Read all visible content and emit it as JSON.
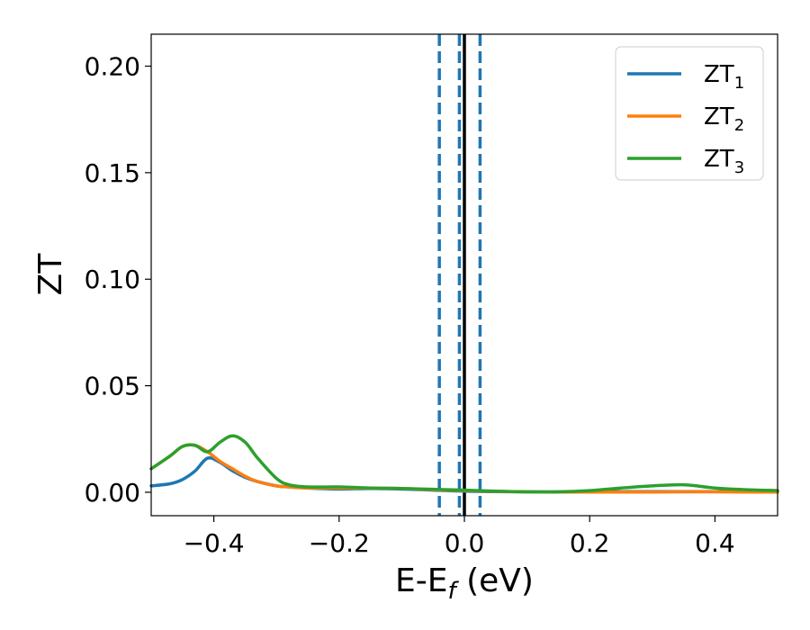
{
  "chart_data": {
    "type": "line",
    "xlabel": "E-E",
    "xlabel_sub": "f",
    "xlabel_unit": "(eV)",
    "ylabel": "ZT",
    "xlim": [
      -0.5,
      0.5
    ],
    "ylim": [
      -0.011,
      0.215
    ],
    "xticks": [
      -0.4,
      -0.2,
      0.0,
      0.2,
      0.4
    ],
    "xtick_labels": [
      "−0.4",
      "−0.2",
      "0.0",
      "0.2",
      "0.4"
    ],
    "yticks": [
      0.0,
      0.05,
      0.1,
      0.15,
      0.2
    ],
    "ytick_labels": [
      "0.00",
      "0.05",
      "0.10",
      "0.15",
      "0.20"
    ],
    "legend_position": "top-right",
    "vertical_lines": [
      {
        "x": -0.04,
        "style": "dashed",
        "color": "#1f77b4"
      },
      {
        "x": -0.008,
        "style": "dashed",
        "color": "#1f77b4"
      },
      {
        "x": 0.0,
        "style": "solid",
        "color": "#000000"
      },
      {
        "x": 0.025,
        "style": "dashed",
        "color": "#1f77b4"
      }
    ],
    "series": [
      {
        "name": "ZT",
        "subscript": "1",
        "color": "#1f77b4",
        "x": [
          -0.5,
          -0.47,
          -0.45,
          -0.43,
          -0.41,
          -0.39,
          -0.37,
          -0.35,
          -0.33,
          -0.3,
          -0.28,
          -0.25,
          -0.2,
          -0.15,
          -0.1,
          -0.05,
          0.0,
          0.05,
          0.1,
          0.15,
          0.2,
          0.25,
          0.3,
          0.35,
          0.4,
          0.45,
          0.5
        ],
        "y": [
          0.003,
          0.004,
          0.006,
          0.01,
          0.016,
          0.014,
          0.01,
          0.007,
          0.005,
          0.003,
          0.0025,
          0.002,
          0.0015,
          0.0018,
          0.0015,
          0.001,
          0.0005,
          0.0003,
          0.0002,
          0.0002,
          0.0003,
          0.0003,
          0.0003,
          0.0003,
          0.0003,
          0.0003,
          0.0003
        ]
      },
      {
        "name": "ZT",
        "subscript": "2",
        "color": "#ff7f0e",
        "x": [
          -0.5,
          -0.47,
          -0.45,
          -0.43,
          -0.41,
          -0.39,
          -0.37,
          -0.35,
          -0.33,
          -0.3,
          -0.28,
          -0.25,
          -0.2,
          -0.15,
          -0.1,
          -0.05,
          0.0,
          0.05,
          0.1,
          0.15,
          0.2,
          0.25,
          0.3,
          0.35,
          0.4,
          0.45,
          0.5
        ],
        "y": [
          0.011,
          0.017,
          0.0215,
          0.022,
          0.019,
          0.0145,
          0.011,
          0.0075,
          0.005,
          0.003,
          0.0025,
          0.002,
          0.002,
          0.002,
          0.0018,
          0.0012,
          0.0008,
          0.0004,
          0.0002,
          0.0001,
          0.0001,
          0.0001,
          0.0001,
          0.0002,
          0.0002,
          0.0001,
          0.0001
        ]
      },
      {
        "name": "ZT",
        "subscript": "3",
        "color": "#2ca02c",
        "x": [
          -0.5,
          -0.47,
          -0.45,
          -0.43,
          -0.41,
          -0.39,
          -0.37,
          -0.35,
          -0.33,
          -0.3,
          -0.28,
          -0.25,
          -0.2,
          -0.15,
          -0.1,
          -0.05,
          0.0,
          0.05,
          0.1,
          0.15,
          0.2,
          0.25,
          0.3,
          0.35,
          0.4,
          0.45,
          0.5
        ],
        "y": [
          0.011,
          0.017,
          0.0215,
          0.022,
          0.019,
          0.0235,
          0.0265,
          0.0235,
          0.016,
          0.0065,
          0.0035,
          0.0025,
          0.0025,
          0.002,
          0.0018,
          0.0014,
          0.001,
          0.0005,
          0.0002,
          0.0002,
          0.0008,
          0.002,
          0.003,
          0.0035,
          0.002,
          0.0012,
          0.0008
        ]
      }
    ]
  }
}
